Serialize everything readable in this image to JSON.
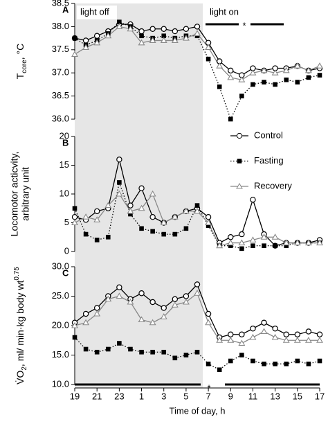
{
  "light_off_span": [
    19,
    30.5
  ],
  "chart_data": [
    {
      "type": "line",
      "panel_label": "A",
      "ylabel": [
        "T",
        "core",
        ", °C"
      ],
      "annotations": [
        "light off",
        "light on",
        "*"
      ],
      "ylim": [
        36,
        38.5
      ],
      "yticks": [
        {
          "value": 36,
          "label": "36.0"
        },
        {
          "value": 36.5,
          "label": "36.5"
        },
        {
          "value": 37,
          "label": "37.0"
        },
        {
          "value": 37.5,
          "label": "37.5"
        },
        {
          "value": 38,
          "label": "38.0"
        },
        {
          "value": 38.5,
          "label": "38.5"
        }
      ],
      "xlim": [
        19,
        41
      ],
      "x": [
        19,
        20,
        21,
        22,
        23,
        24,
        25,
        26,
        27,
        28,
        29,
        30,
        31,
        32,
        33,
        34,
        35,
        36,
        37,
        38,
        39,
        40,
        41
      ],
      "series": [
        {
          "marker": "circle",
          "color": "#000000",
          "linestyle": "solid",
          "values": [
            37.75,
            37.7,
            37.8,
            37.9,
            38.05,
            38.05,
            37.9,
            37.95,
            37.95,
            37.9,
            37.95,
            38.0,
            37.65,
            37.25,
            37.05,
            36.95,
            37.1,
            37.05,
            37.1,
            37.1,
            37.15,
            37.05,
            37.1
          ]
        },
        {
          "marker": "square",
          "color": "#000000",
          "linestyle": "dotted",
          "values": [
            37.75,
            37.6,
            37.7,
            37.85,
            38.1,
            38.0,
            37.8,
            37.75,
            37.8,
            37.75,
            37.8,
            37.8,
            37.3,
            36.7,
            36.0,
            36.5,
            36.75,
            36.8,
            36.75,
            36.85,
            36.8,
            36.9,
            36.95
          ]
        },
        {
          "marker": "triangle",
          "color": "#888888",
          "linestyle": "solid",
          "values": [
            37.4,
            37.55,
            37.65,
            37.8,
            38.0,
            37.95,
            37.65,
            37.7,
            37.7,
            37.7,
            37.75,
            37.85,
            37.55,
            37.15,
            36.9,
            36.85,
            37.0,
            37.05,
            37.0,
            37.05,
            37.15,
            37.05,
            37.15
          ]
        }
      ]
    },
    {
      "type": "line",
      "panel_label": "B",
      "ylabel": [
        "Locomotor acticvity,",
        "arbitrary unit"
      ],
      "ylim": [
        0,
        20
      ],
      "yticks": [
        0,
        5,
        10,
        15,
        20
      ],
      "xlim": [
        19,
        41
      ],
      "x": [
        19,
        20,
        21,
        22,
        23,
        24,
        25,
        26,
        27,
        28,
        29,
        30,
        31,
        32,
        33,
        34,
        35,
        36,
        37,
        38,
        39,
        40,
        41
      ],
      "series": [
        {
          "name": "Control",
          "marker": "circle",
          "color": "#000000",
          "linestyle": "solid",
          "values": [
            6,
            5.5,
            7,
            7.5,
            16,
            8,
            11,
            6,
            5,
            6,
            7,
            7.5,
            6,
            1.5,
            2.5,
            3,
            9,
            3,
            1,
            1.5,
            1.5,
            1.5,
            2
          ]
        },
        {
          "name": "Fasting",
          "marker": "square",
          "color": "#000000",
          "linestyle": "dotted",
          "values": [
            7.5,
            3,
            2,
            2.5,
            12,
            6.5,
            4,
            3.5,
            3,
            3,
            4,
            8,
            4.5,
            1,
            1,
            0.5,
            1,
            1,
            1,
            1,
            1.5,
            1.5,
            1.5
          ]
        },
        {
          "name": "Recovery",
          "marker": "triangle",
          "color": "#888888",
          "linestyle": "solid",
          "values": [
            5,
            6,
            5.5,
            8,
            10,
            7,
            7.5,
            10,
            5,
            6,
            7,
            7,
            5,
            1,
            1.5,
            1.5,
            2,
            2.5,
            2.5,
            1.5,
            1.5,
            1.5,
            1.5
          ]
        }
      ]
    },
    {
      "type": "line",
      "panel_label": "C",
      "ylabel": [
        "V̇O",
        "2",
        ", ml/ min·kg body wt",
        "0.75"
      ],
      "annotations": [
        "*"
      ],
      "xlabel": "Time of day, h",
      "ylim": [
        10,
        30
      ],
      "yticks": [
        {
          "value": 10,
          "label": "10.0"
        },
        {
          "value": 15,
          "label": "15.0"
        },
        {
          "value": 20,
          "label": "20.0"
        },
        {
          "value": 25,
          "label": "25.0"
        },
        {
          "value": 30,
          "label": "30.0"
        }
      ],
      "xlim": [
        19,
        41
      ],
      "xticks": [
        19,
        21,
        23,
        {
          "value": 25,
          "label": "1"
        },
        {
          "value": 27,
          "label": "3"
        },
        {
          "value": 29,
          "label": "5"
        },
        {
          "value": 31,
          "label": "7"
        },
        {
          "value": 33,
          "label": "9"
        },
        {
          "value": 35,
          "label": "11"
        },
        {
          "value": 37,
          "label": "13"
        },
        {
          "value": 39,
          "label": "15"
        },
        {
          "value": 41,
          "label": "17"
        }
      ],
      "x": [
        19,
        20,
        21,
        22,
        23,
        24,
        25,
        26,
        27,
        28,
        29,
        30,
        31,
        32,
        33,
        34,
        35,
        36,
        37,
        38,
        39,
        40,
        41
      ],
      "series": [
        {
          "marker": "circle",
          "color": "#000000",
          "linestyle": "solid",
          "values": [
            20.5,
            22,
            23,
            25,
            26.5,
            24.5,
            25.5,
            24,
            23,
            24.5,
            25,
            27,
            22,
            18,
            18.5,
            18.5,
            19.5,
            20.5,
            19.5,
            18.5,
            18.5,
            19,
            18.5
          ]
        },
        {
          "marker": "square",
          "color": "#000000",
          "linestyle": "dotted",
          "values": [
            18,
            16,
            15.5,
            16,
            17,
            16,
            15.5,
            15.5,
            15.5,
            14.5,
            15,
            15.5,
            13.5,
            12.5,
            14,
            15,
            14,
            13.5,
            13.5,
            13.5,
            14,
            13.5,
            14
          ]
        },
        {
          "marker": "triangle",
          "color": "#888888",
          "linestyle": "solid",
          "values": [
            20,
            20.5,
            22,
            24.5,
            25,
            24,
            21,
            20.5,
            21.5,
            23.5,
            24,
            25.5,
            20.5,
            17.5,
            17.5,
            17,
            18,
            19,
            18,
            17.5,
            17.5,
            17.5,
            17.5
          ]
        }
      ]
    }
  ]
}
